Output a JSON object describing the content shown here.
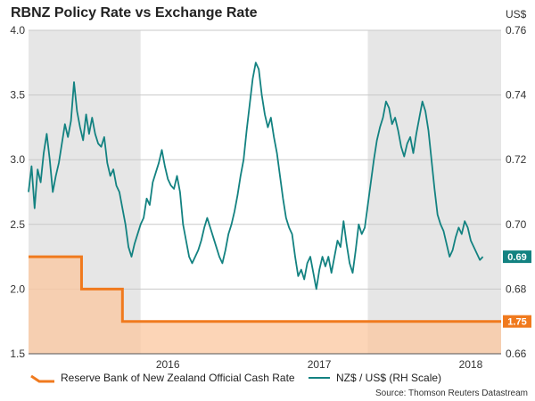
{
  "title": "RBNZ Policy Rate vs Exchange Rate",
  "source": "Source: Thomson Reuters Datastream",
  "colors": {
    "rate_line": "#f07a1e",
    "rate_fill": "#fbc79f",
    "fx_line": "#138281",
    "shade": "#e6e6e6",
    "badge_fx": "#138281",
    "badge_rate": "#f07a1e"
  },
  "legend": [
    {
      "label": "Reserve Bank of New Zealand Official Cash Rate",
      "series": "rate"
    },
    {
      "label": "NZ$ / US$ (RH Scale)",
      "series": "fx"
    }
  ],
  "chart_data": {
    "type": "line",
    "title": "RBNZ Policy Rate vs Exchange Rate",
    "x_domain": [
      2015.26,
      2018.38
    ],
    "x_ticks": [
      {
        "label": "2016",
        "at": 2016.0
      },
      {
        "label": "2017",
        "at": 2017.0
      },
      {
        "label": "2018",
        "at": 2018.0
      }
    ],
    "year_bands": [
      [
        2015.26,
        2016.0
      ],
      [
        2017.5,
        2018.38
      ]
    ],
    "left_axis": {
      "label": "",
      "ylim": [
        1.5,
        4.0
      ],
      "ticks": [
        "1.5",
        "2.0",
        "2.5",
        "3.0",
        "3.5",
        "4.0"
      ]
    },
    "right_axis": {
      "label": "US$",
      "ylim": [
        0.66,
        0.76
      ],
      "ticks": [
        "0.66",
        "0.68",
        "0.70",
        "0.72",
        "0.74",
        "0.76"
      ]
    },
    "series": [
      {
        "name": "Reserve Bank of New Zealand Official Cash Rate",
        "type": "step-area",
        "axis": "left",
        "points": [
          [
            2015.26,
            2.25
          ],
          [
            2015.61,
            2.25
          ],
          [
            2015.61,
            2.0
          ],
          [
            2015.88,
            2.0
          ],
          [
            2015.88,
            1.75
          ],
          [
            2018.38,
            1.75
          ]
        ],
        "last_label": "1.75"
      },
      {
        "name": "NZ$ / US$ (RH Scale)",
        "type": "line",
        "axis": "right",
        "points": [
          [
            2015.26,
            0.71
          ],
          [
            2015.28,
            0.718
          ],
          [
            2015.3,
            0.705
          ],
          [
            2015.32,
            0.717
          ],
          [
            2015.34,
            0.713
          ],
          [
            2015.36,
            0.722
          ],
          [
            2015.38,
            0.728
          ],
          [
            2015.4,
            0.72
          ],
          [
            2015.42,
            0.71
          ],
          [
            2015.44,
            0.715
          ],
          [
            2015.46,
            0.719
          ],
          [
            2015.48,
            0.725
          ],
          [
            2015.5,
            0.731
          ],
          [
            2015.52,
            0.727
          ],
          [
            2015.54,
            0.732
          ],
          [
            2015.56,
            0.744
          ],
          [
            2015.58,
            0.735
          ],
          [
            2015.6,
            0.73
          ],
          [
            2015.62,
            0.726
          ],
          [
            2015.64,
            0.734
          ],
          [
            2015.66,
            0.728
          ],
          [
            2015.68,
            0.733
          ],
          [
            2015.7,
            0.728
          ],
          [
            2015.72,
            0.725
          ],
          [
            2015.74,
            0.724
          ],
          [
            2015.76,
            0.727
          ],
          [
            2015.78,
            0.719
          ],
          [
            2015.8,
            0.715
          ],
          [
            2015.82,
            0.717
          ],
          [
            2015.84,
            0.712
          ],
          [
            2015.86,
            0.71
          ],
          [
            2015.88,
            0.705
          ],
          [
            2015.9,
            0.7
          ],
          [
            2015.92,
            0.693
          ],
          [
            2015.94,
            0.69
          ],
          [
            2015.96,
            0.694
          ],
          [
            2015.98,
            0.697
          ],
          [
            2016.0,
            0.7
          ],
          [
            2016.02,
            0.702
          ],
          [
            2016.04,
            0.708
          ],
          [
            2016.06,
            0.706
          ],
          [
            2016.08,
            0.713
          ],
          [
            2016.1,
            0.716
          ],
          [
            2016.12,
            0.719
          ],
          [
            2016.14,
            0.723
          ],
          [
            2016.16,
            0.718
          ],
          [
            2016.18,
            0.714
          ],
          [
            2016.2,
            0.712
          ],
          [
            2016.22,
            0.711
          ],
          [
            2016.24,
            0.715
          ],
          [
            2016.26,
            0.71
          ],
          [
            2016.28,
            0.7
          ],
          [
            2016.3,
            0.695
          ],
          [
            2016.32,
            0.69
          ],
          [
            2016.34,
            0.688
          ],
          [
            2016.36,
            0.69
          ],
          [
            2016.38,
            0.692
          ],
          [
            2016.4,
            0.695
          ],
          [
            2016.42,
            0.699
          ],
          [
            2016.44,
            0.702
          ],
          [
            2016.46,
            0.699
          ],
          [
            2016.48,
            0.696
          ],
          [
            2016.5,
            0.693
          ],
          [
            2016.52,
            0.69
          ],
          [
            2016.54,
            0.688
          ],
          [
            2016.56,
            0.692
          ],
          [
            2016.58,
            0.697
          ],
          [
            2016.6,
            0.7
          ],
          [
            2016.62,
            0.704
          ],
          [
            2016.64,
            0.709
          ],
          [
            2016.66,
            0.715
          ],
          [
            2016.68,
            0.72
          ],
          [
            2016.7,
            0.729
          ],
          [
            2016.72,
            0.737
          ],
          [
            2016.74,
            0.745
          ],
          [
            2016.76,
            0.75
          ],
          [
            2016.78,
            0.748
          ],
          [
            2016.8,
            0.74
          ],
          [
            2016.82,
            0.734
          ],
          [
            2016.84,
            0.73
          ],
          [
            2016.86,
            0.733
          ],
          [
            2016.88,
            0.727
          ],
          [
            2016.9,
            0.722
          ],
          [
            2016.92,
            0.715
          ],
          [
            2016.94,
            0.708
          ],
          [
            2016.96,
            0.702
          ],
          [
            2016.98,
            0.699
          ],
          [
            2017.0,
            0.697
          ],
          [
            2017.02,
            0.69
          ],
          [
            2017.04,
            0.684
          ],
          [
            2017.06,
            0.686
          ],
          [
            2017.08,
            0.683
          ],
          [
            2017.1,
            0.688
          ],
          [
            2017.12,
            0.69
          ],
          [
            2017.14,
            0.685
          ],
          [
            2017.16,
            0.68
          ],
          [
            2017.18,
            0.686
          ],
          [
            2017.2,
            0.69
          ],
          [
            2017.22,
            0.687
          ],
          [
            2017.24,
            0.69
          ],
          [
            2017.26,
            0.685
          ],
          [
            2017.28,
            0.69
          ],
          [
            2017.3,
            0.695
          ],
          [
            2017.32,
            0.693
          ],
          [
            2017.34,
            0.701
          ],
          [
            2017.36,
            0.694
          ],
          [
            2017.38,
            0.688
          ],
          [
            2017.4,
            0.685
          ],
          [
            2017.42,
            0.692
          ],
          [
            2017.44,
            0.7
          ],
          [
            2017.46,
            0.697
          ],
          [
            2017.48,
            0.699
          ],
          [
            2017.5,
            0.706
          ],
          [
            2017.52,
            0.713
          ],
          [
            2017.54,
            0.72
          ],
          [
            2017.56,
            0.726
          ],
          [
            2017.58,
            0.73
          ],
          [
            2017.6,
            0.733
          ],
          [
            2017.62,
            0.738
          ],
          [
            2017.64,
            0.736
          ],
          [
            2017.66,
            0.731
          ],
          [
            2017.68,
            0.733
          ],
          [
            2017.7,
            0.729
          ],
          [
            2017.72,
            0.724
          ],
          [
            2017.74,
            0.721
          ],
          [
            2017.76,
            0.725
          ],
          [
            2017.78,
            0.727
          ],
          [
            2017.8,
            0.722
          ],
          [
            2017.82,
            0.728
          ],
          [
            2017.84,
            0.733
          ],
          [
            2017.86,
            0.738
          ],
          [
            2017.88,
            0.735
          ],
          [
            2017.9,
            0.729
          ],
          [
            2017.92,
            0.72
          ],
          [
            2017.94,
            0.711
          ],
          [
            2017.96,
            0.703
          ],
          [
            2017.98,
            0.7
          ],
          [
            2018.0,
            0.698
          ],
          [
            2018.02,
            0.694
          ],
          [
            2018.04,
            0.69
          ],
          [
            2018.06,
            0.692
          ],
          [
            2018.08,
            0.696
          ],
          [
            2018.1,
            0.699
          ],
          [
            2018.12,
            0.697
          ],
          [
            2018.14,
            0.701
          ],
          [
            2018.16,
            0.699
          ],
          [
            2018.18,
            0.695
          ],
          [
            2018.2,
            0.693
          ],
          [
            2018.22,
            0.691
          ],
          [
            2018.24,
            0.689
          ],
          [
            2018.26,
            0.69
          ]
        ],
        "last_label": "0.69"
      }
    ]
  }
}
